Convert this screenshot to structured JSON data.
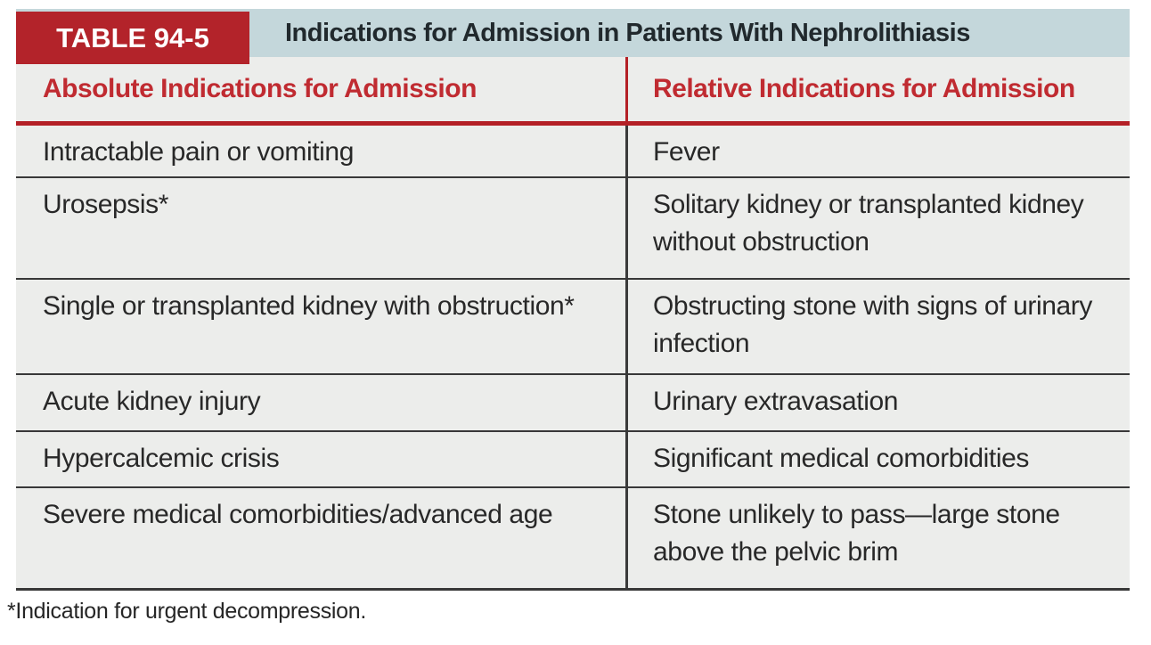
{
  "table": {
    "label": "TABLE 94-5",
    "title": "Indications for Admission in Patients With Nephrolithiasis",
    "columns": {
      "absolute": "Absolute Indications for Admission",
      "relative": "Relative Indications for Admission"
    },
    "rows": [
      {
        "absolute": "Intractable pain or vomiting",
        "relative": "Fever"
      },
      {
        "absolute": "Urosepsis*",
        "relative": "Solitary kidney or transplanted kidney without obstruction"
      },
      {
        "absolute": "Single or transplanted kidney with obstruction*",
        "relative": "Obstructing stone with signs of urinary infection"
      },
      {
        "absolute": "Acute kidney injury",
        "relative": "Urinary extravasation"
      },
      {
        "absolute": "Hypercalcemic crisis",
        "relative": "Significant medical comorbidities"
      },
      {
        "absolute": "Severe medical comorbidities/advanced age",
        "relative": "Stone unlikely to pass—large stone above the pelvic brim"
      }
    ],
    "footnote": "*Indication for urgent decompression.",
    "colors": {
      "label_box_red": "#b3232a",
      "header_text_red": "#c02b31",
      "rule_red": "#b42026",
      "band_teal": "#c4d7db",
      "row_bg_gray": "#ecedeb",
      "divider_dark": "#383838"
    }
  }
}
